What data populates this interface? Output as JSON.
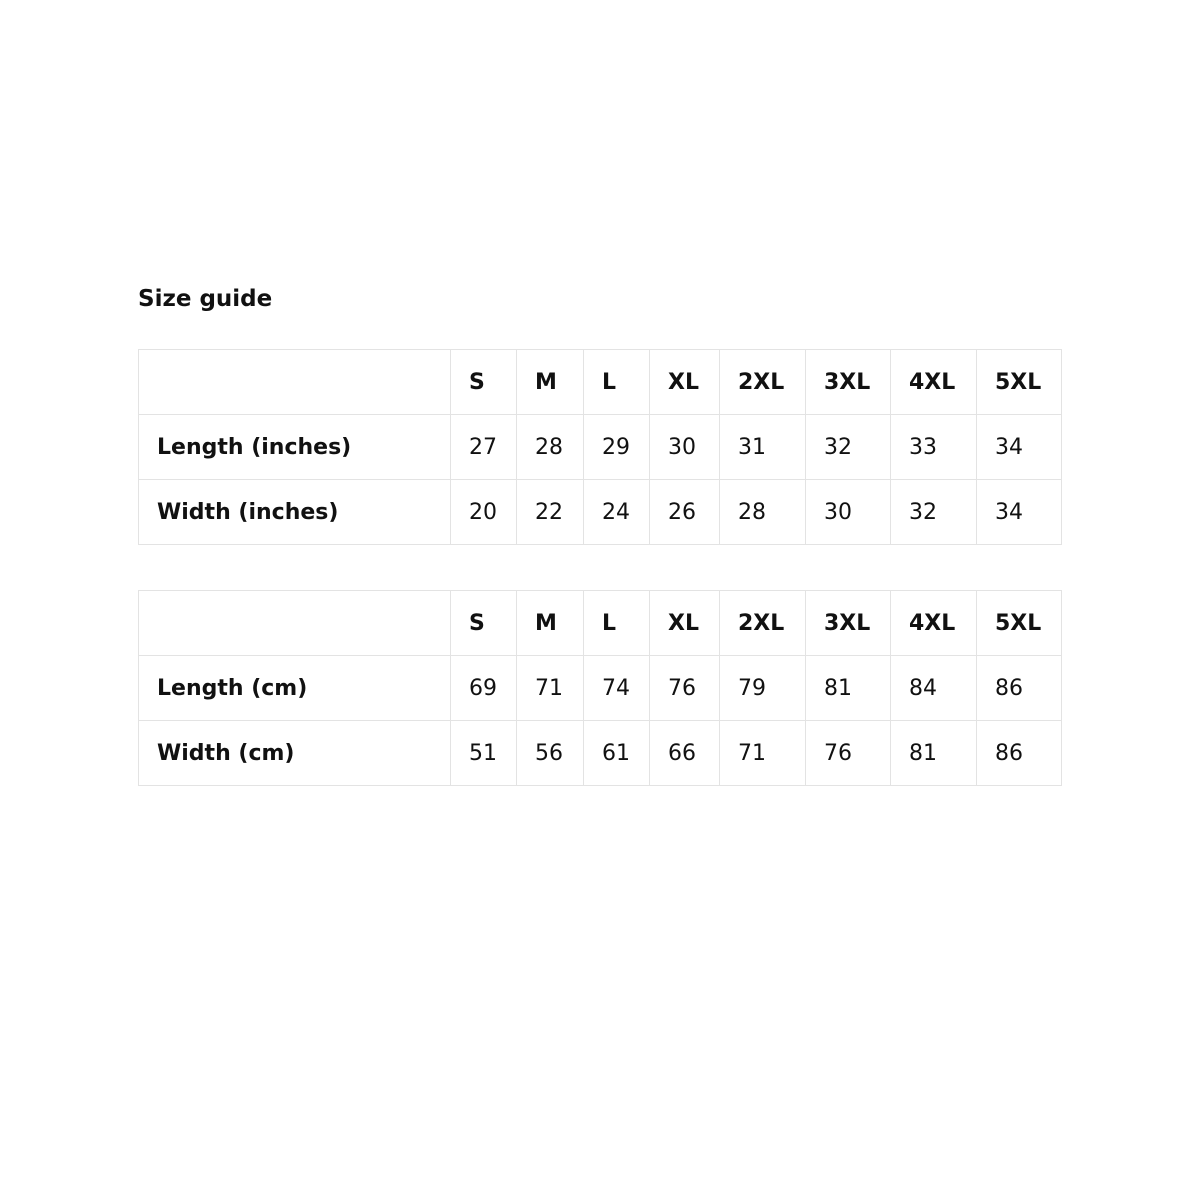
{
  "title": "Size guide",
  "tables": [
    {
      "sizes": [
        "S",
        "M",
        "L",
        "XL",
        "2XL",
        "3XL",
        "4XL",
        "5XL"
      ],
      "rows": [
        {
          "label": "Length (inches)",
          "values": [
            "27",
            "28",
            "29",
            "30",
            "31",
            "32",
            "33",
            "34"
          ]
        },
        {
          "label": "Width (inches)",
          "values": [
            "20",
            "22",
            "24",
            "26",
            "28",
            "30",
            "32",
            "34"
          ]
        }
      ]
    },
    {
      "sizes": [
        "S",
        "M",
        "L",
        "XL",
        "2XL",
        "3XL",
        "4XL",
        "5XL"
      ],
      "rows": [
        {
          "label": "Length (cm)",
          "values": [
            "69",
            "71",
            "74",
            "76",
            "79",
            "81",
            "84",
            "86"
          ]
        },
        {
          "label": "Width (cm)",
          "values": [
            "51",
            "56",
            "61",
            "66",
            "71",
            "76",
            "81",
            "86"
          ]
        }
      ]
    }
  ]
}
